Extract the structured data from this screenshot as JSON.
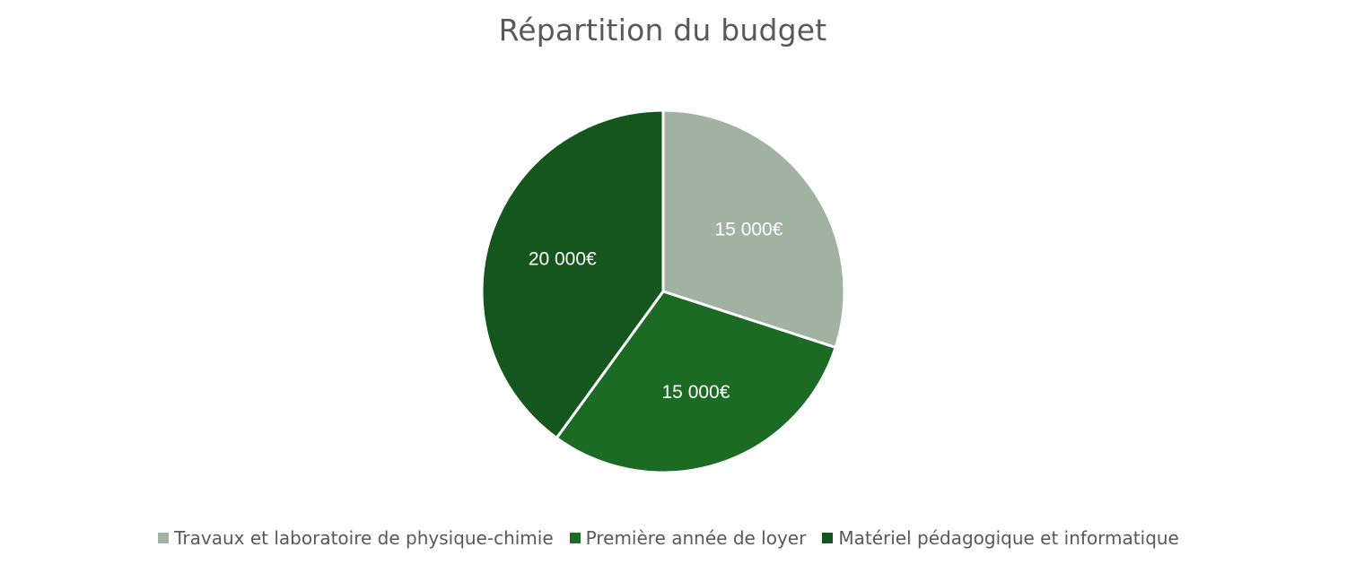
{
  "chart_data": {
    "type": "pie",
    "title": "Répartition du budget",
    "categories": [
      "Travaux et laboratoire de physique-chimie",
      "Première année de loyer",
      "Matériel pédagogique et informatique"
    ],
    "values": [
      15000,
      15000,
      20000
    ],
    "data_labels": [
      "15 000€",
      "15 000€",
      "20 000€"
    ],
    "colors": [
      "#a1b2a1",
      "#1b6b25",
      "#15561e"
    ],
    "legend_position": "bottom",
    "start_angle": "12 o'clock",
    "direction": "clockwise"
  }
}
